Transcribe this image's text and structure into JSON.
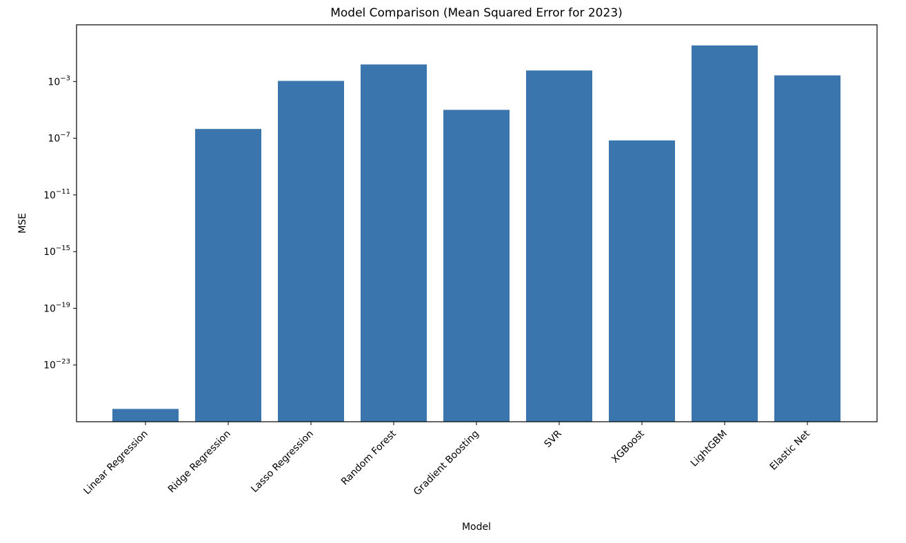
{
  "chart_data": {
    "type": "bar",
    "title": "Model Comparison (Mean Squared Error for 2023)",
    "xlabel": "Model",
    "ylabel": "MSE",
    "yscale": "log",
    "categories": [
      "Linear Regression",
      "Ridge Regression",
      "Lasso Regression",
      "Random Forest",
      "Gradient Boosting",
      "SVR",
      "XGBoost",
      "LightGBM",
      "Elastic Net"
    ],
    "values": [
      8e-27,
      4.5e-07,
      0.0011,
      0.016,
      1e-05,
      0.006,
      7e-08,
      0.35,
      0.0027
    ],
    "ylim": [
      1e-27,
      10
    ],
    "yticks": [
      {
        "base": "10",
        "exp": "−3",
        "value": 0.001
      },
      {
        "base": "10",
        "exp": "−7",
        "value": 1e-07
      },
      {
        "base": "10",
        "exp": "−11",
        "value": 1e-11
      },
      {
        "base": "10",
        "exp": "−15",
        "value": 1e-15
      },
      {
        "base": "10",
        "exp": "−19",
        "value": 1e-19
      },
      {
        "base": "10",
        "exp": "−23",
        "value": 1e-23
      }
    ],
    "grid": false,
    "legend": "none",
    "colors": {
      "bar": "#3a76ad",
      "axis": "#000000"
    }
  }
}
